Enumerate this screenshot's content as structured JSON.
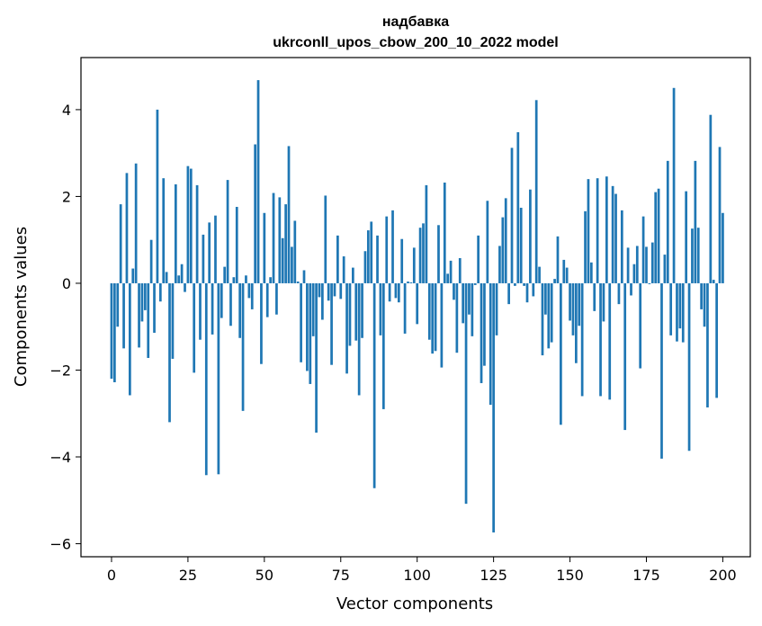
{
  "chart_data": {
    "type": "bar",
    "title_line1": "надбавка",
    "title_line2": "ukrconll_upos_cbow_200_10_2022 model",
    "xlabel": "Vector components",
    "ylabel": "Components values",
    "xlim": [
      -10,
      209
    ],
    "ylim": [
      -6.3,
      5.2
    ],
    "xticks": [
      0,
      25,
      50,
      75,
      100,
      125,
      150,
      175,
      200
    ],
    "yticks": [
      -6,
      -4,
      -2,
      0,
      2,
      4
    ],
    "ytick_labels": [
      "−6",
      "−4",
      "−2",
      "0",
      "2",
      "4"
    ],
    "bar_color": "#1f77b4",
    "grid": false,
    "values": [
      -2.2,
      -2.28,
      -1.0,
      1.82,
      -1.5,
      2.54,
      -2.58,
      0.34,
      2.76,
      -1.48,
      -0.88,
      -0.62,
      -1.72,
      1.0,
      -1.14,
      4.0,
      -0.42,
      2.42,
      0.26,
      -3.2,
      -1.74,
      2.28,
      0.18,
      0.44,
      -0.2,
      2.7,
      2.64,
      -2.06,
      2.26,
      -1.3,
      1.12,
      -4.42,
      1.4,
      -1.18,
      1.56,
      -4.4,
      -0.8,
      0.38,
      2.38,
      -0.98,
      0.14,
      1.76,
      -1.26,
      -2.94,
      0.18,
      -0.34,
      -0.6,
      3.2,
      4.68,
      -1.86,
      1.62,
      -0.78,
      0.14,
      2.08,
      -0.72,
      1.98,
      1.04,
      1.82,
      3.16,
      0.84,
      1.44,
      0.04,
      -1.82,
      0.3,
      -2.02,
      -2.32,
      -1.22,
      -3.44,
      -0.32,
      -0.84,
      2.02,
      -0.4,
      -1.88,
      -0.3,
      1.1,
      -0.36,
      0.62,
      -2.08,
      -1.44,
      0.36,
      -1.32,
      -2.58,
      -1.26,
      0.74,
      1.22,
      1.42,
      -4.72,
      1.1,
      -1.2,
      -2.9,
      1.54,
      -0.42,
      1.68,
      -0.34,
      -0.44,
      1.02,
      -1.16,
      0.04,
      0.02,
      0.82,
      -0.94,
      1.28,
      1.38,
      2.26,
      -1.3,
      -1.62,
      -1.56,
      1.34,
      -1.94,
      2.32,
      0.22,
      0.52,
      -0.38,
      -1.6,
      0.58,
      -0.92,
      -5.08,
      -0.72,
      -1.22,
      -0.04,
      1.1,
      -2.3,
      -1.9,
      1.9,
      -2.8,
      -5.74,
      -1.2,
      0.86,
      1.52,
      1.96,
      -0.48,
      3.12,
      -0.06,
      3.48,
      1.74,
      -0.06,
      -0.44,
      2.16,
      -0.3,
      4.22,
      0.38,
      -1.66,
      -0.72,
      -1.5,
      -1.36,
      0.1,
      1.08,
      -3.26,
      0.54,
      0.36,
      -0.86,
      -1.2,
      -1.84,
      -0.98,
      -2.6,
      1.66,
      2.4,
      0.48,
      -0.64,
      2.42,
      -2.6,
      -0.88,
      2.46,
      -2.68,
      2.24,
      2.06,
      -0.48,
      1.68,
      -3.38,
      0.82,
      -0.28,
      0.44,
      0.86,
      -1.96,
      1.54,
      0.84,
      -0.02,
      0.94,
      2.1,
      2.18,
      -4.04,
      0.66,
      2.82,
      -1.2,
      4.5,
      -1.34,
      -1.04,
      -1.36,
      2.12,
      -3.86,
      1.26,
      2.82,
      1.28,
      -0.6,
      -1.0,
      -2.86,
      3.88,
      0.08,
      -2.64,
      3.14,
      1.62
    ]
  }
}
